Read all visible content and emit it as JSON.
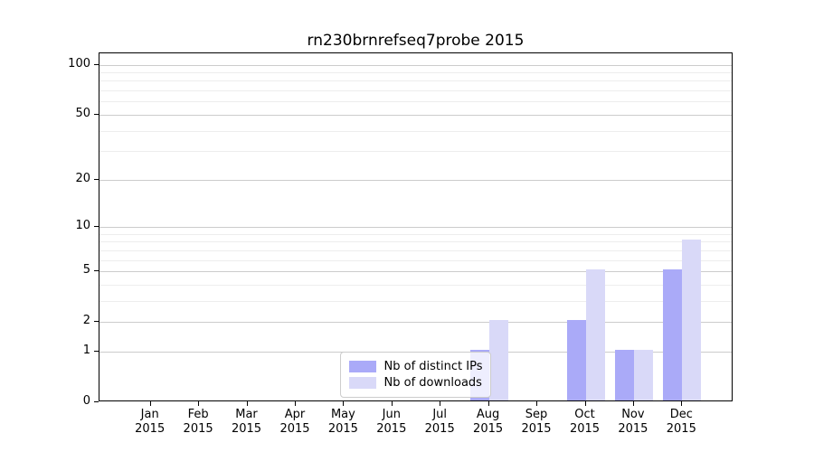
{
  "chart_data": {
    "type": "bar",
    "title": "rn230brnrefseq7probe 2015",
    "categories": [
      "Jan 2015",
      "Feb 2015",
      "Mar 2015",
      "Apr 2015",
      "May 2015",
      "Jun 2015",
      "Jul 2015",
      "Aug 2015",
      "Sep 2015",
      "Oct 2015",
      "Nov 2015",
      "Dec 2015"
    ],
    "series": [
      {
        "name": "Nb of distinct IPs",
        "color": "#aaaaf8",
        "values": [
          0,
          0,
          0,
          0,
          0,
          0,
          0,
          1,
          0,
          2,
          1,
          5
        ]
      },
      {
        "name": "Nb of downloads",
        "color": "#d9d9f8",
        "values": [
          0,
          0,
          0,
          0,
          0,
          0,
          0,
          2,
          0,
          5,
          1,
          8
        ]
      }
    ],
    "xlabel": "",
    "ylabel": "",
    "yscale": "log1p",
    "ylim": [
      0,
      117
    ],
    "yticks": [
      0,
      1,
      2,
      5,
      10,
      20,
      50,
      100
    ],
    "yticks_minor": [
      3,
      4,
      6,
      7,
      8,
      9,
      30,
      40,
      60,
      70,
      80,
      90
    ],
    "grid": true,
    "legend_position": "lower center"
  },
  "colors": {
    "background": "#ffffff",
    "spine": "#000000",
    "grid_major": "#cccccc",
    "grid_minor": "#ededed",
    "legend_border": "#cccccc",
    "bar_distinct_ips": "#aaaaf8",
    "bar_downloads": "#d9d9f8",
    "text": "#000000"
  }
}
